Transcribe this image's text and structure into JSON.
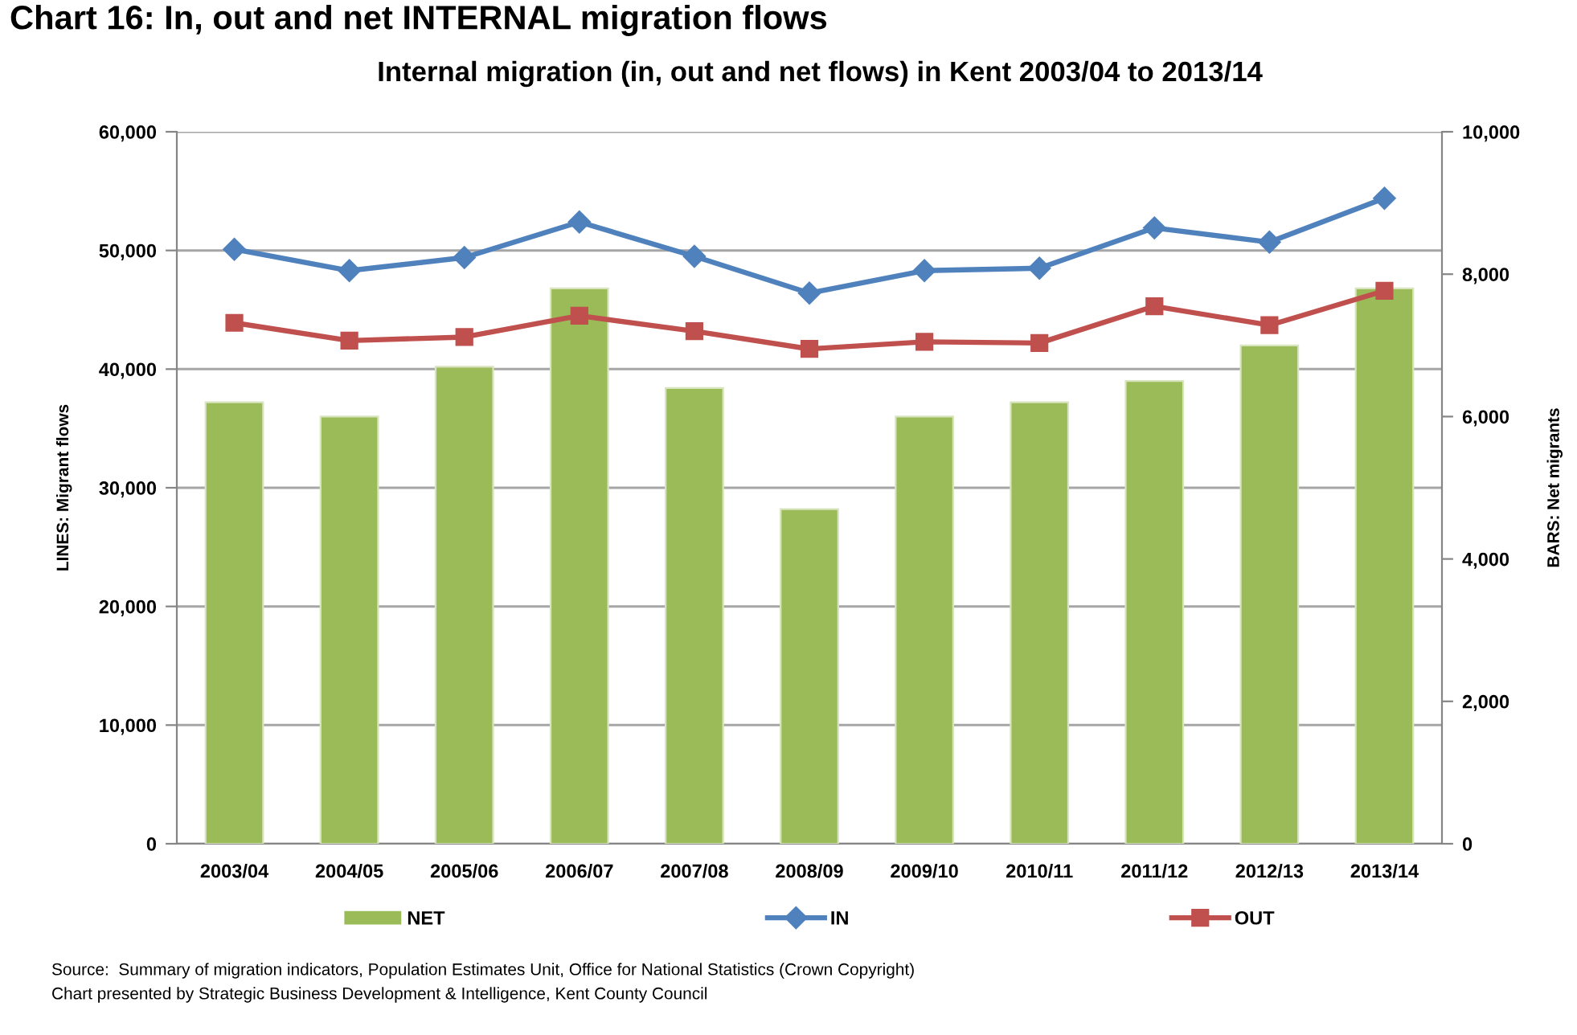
{
  "chart_data": {
    "type": "line",
    "title": "Chart 16: In, out and net INTERNAL migration flows",
    "subtitle": "Internal migration (in, out and net flows) in Kent 2003/04 to 2013/14",
    "ylabel": "LINES: Migrant flows",
    "y2label": "BARS: Net migrants",
    "categories": [
      "2003/04",
      "2004/05",
      "2005/06",
      "2006/07",
      "2007/08",
      "2008/09",
      "2009/10",
      "2010/11",
      "2011/12",
      "2012/13",
      "2013/14"
    ],
    "series": [
      {
        "name": "NET",
        "type": "bar",
        "axis": "y2",
        "color": "#9bbb59",
        "values": [
          6200,
          6000,
          6700,
          7800,
          6400,
          4700,
          6000,
          6200,
          6500,
          7000,
          7800
        ]
      },
      {
        "name": "IN",
        "color": "#4f81bd",
        "marker": "diamond",
        "values": [
          50100,
          48300,
          49400,
          52400,
          49500,
          46400,
          48300,
          48500,
          51900,
          50700,
          54400
        ]
      },
      {
        "name": "OUT",
        "color": "#c0504d",
        "marker": "square",
        "values": [
          43900,
          42400,
          42700,
          44500,
          43200,
          41700,
          42300,
          42200,
          45300,
          43700,
          46600
        ]
      }
    ],
    "ylim": [
      0,
      60000
    ],
    "yticks": [
      {
        "value": 0,
        "label": "0"
      },
      {
        "value": 10000,
        "label": "10,000"
      },
      {
        "value": 20000,
        "label": "20,000"
      },
      {
        "value": 30000,
        "label": "30,000"
      },
      {
        "value": 40000,
        "label": "40,000"
      },
      {
        "value": 50000,
        "label": "50,000"
      },
      {
        "value": 60000,
        "label": "60,000"
      }
    ],
    "y2lim": [
      0,
      10000
    ],
    "y2ticks": [
      {
        "value": 0,
        "label": "0"
      },
      {
        "value": 2000,
        "label": "2,000"
      },
      {
        "value": 4000,
        "label": "4,000"
      },
      {
        "value": 6000,
        "label": "6,000"
      },
      {
        "value": 8000,
        "label": "8,000"
      },
      {
        "value": 10000,
        "label": "10,000"
      }
    ],
    "grid": "y",
    "legend": "bottom",
    "annotations": [
      "Source:  Summary of migration indicators, Population Estimates Unit, Office for National Statistics (Crown Copyright)",
      "Chart presented by Strategic Business Development & Intelligence, Kent County Council"
    ]
  }
}
